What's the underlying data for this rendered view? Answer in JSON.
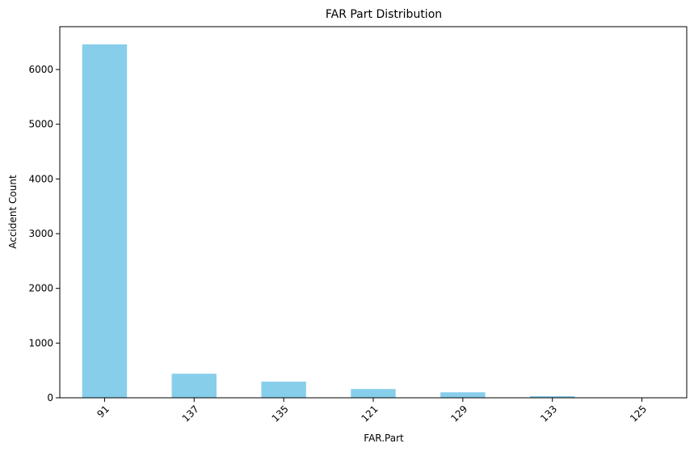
{
  "chart_data": {
    "type": "bar",
    "title": "FAR Part Distribution",
    "xlabel": "FAR.Part",
    "ylabel": "Accident Count",
    "categories": [
      "91",
      "137",
      "135",
      "121",
      "129",
      "133",
      "125"
    ],
    "values": [
      6460,
      440,
      295,
      160,
      100,
      30,
      5
    ],
    "ylim": [
      0,
      6783
    ],
    "yticks": [
      0,
      1000,
      2000,
      3000,
      4000,
      5000,
      6000
    ],
    "grid": false,
    "legend": "none",
    "bar_color": "#87CEEB",
    "xtick_rotation_deg": 45
  }
}
